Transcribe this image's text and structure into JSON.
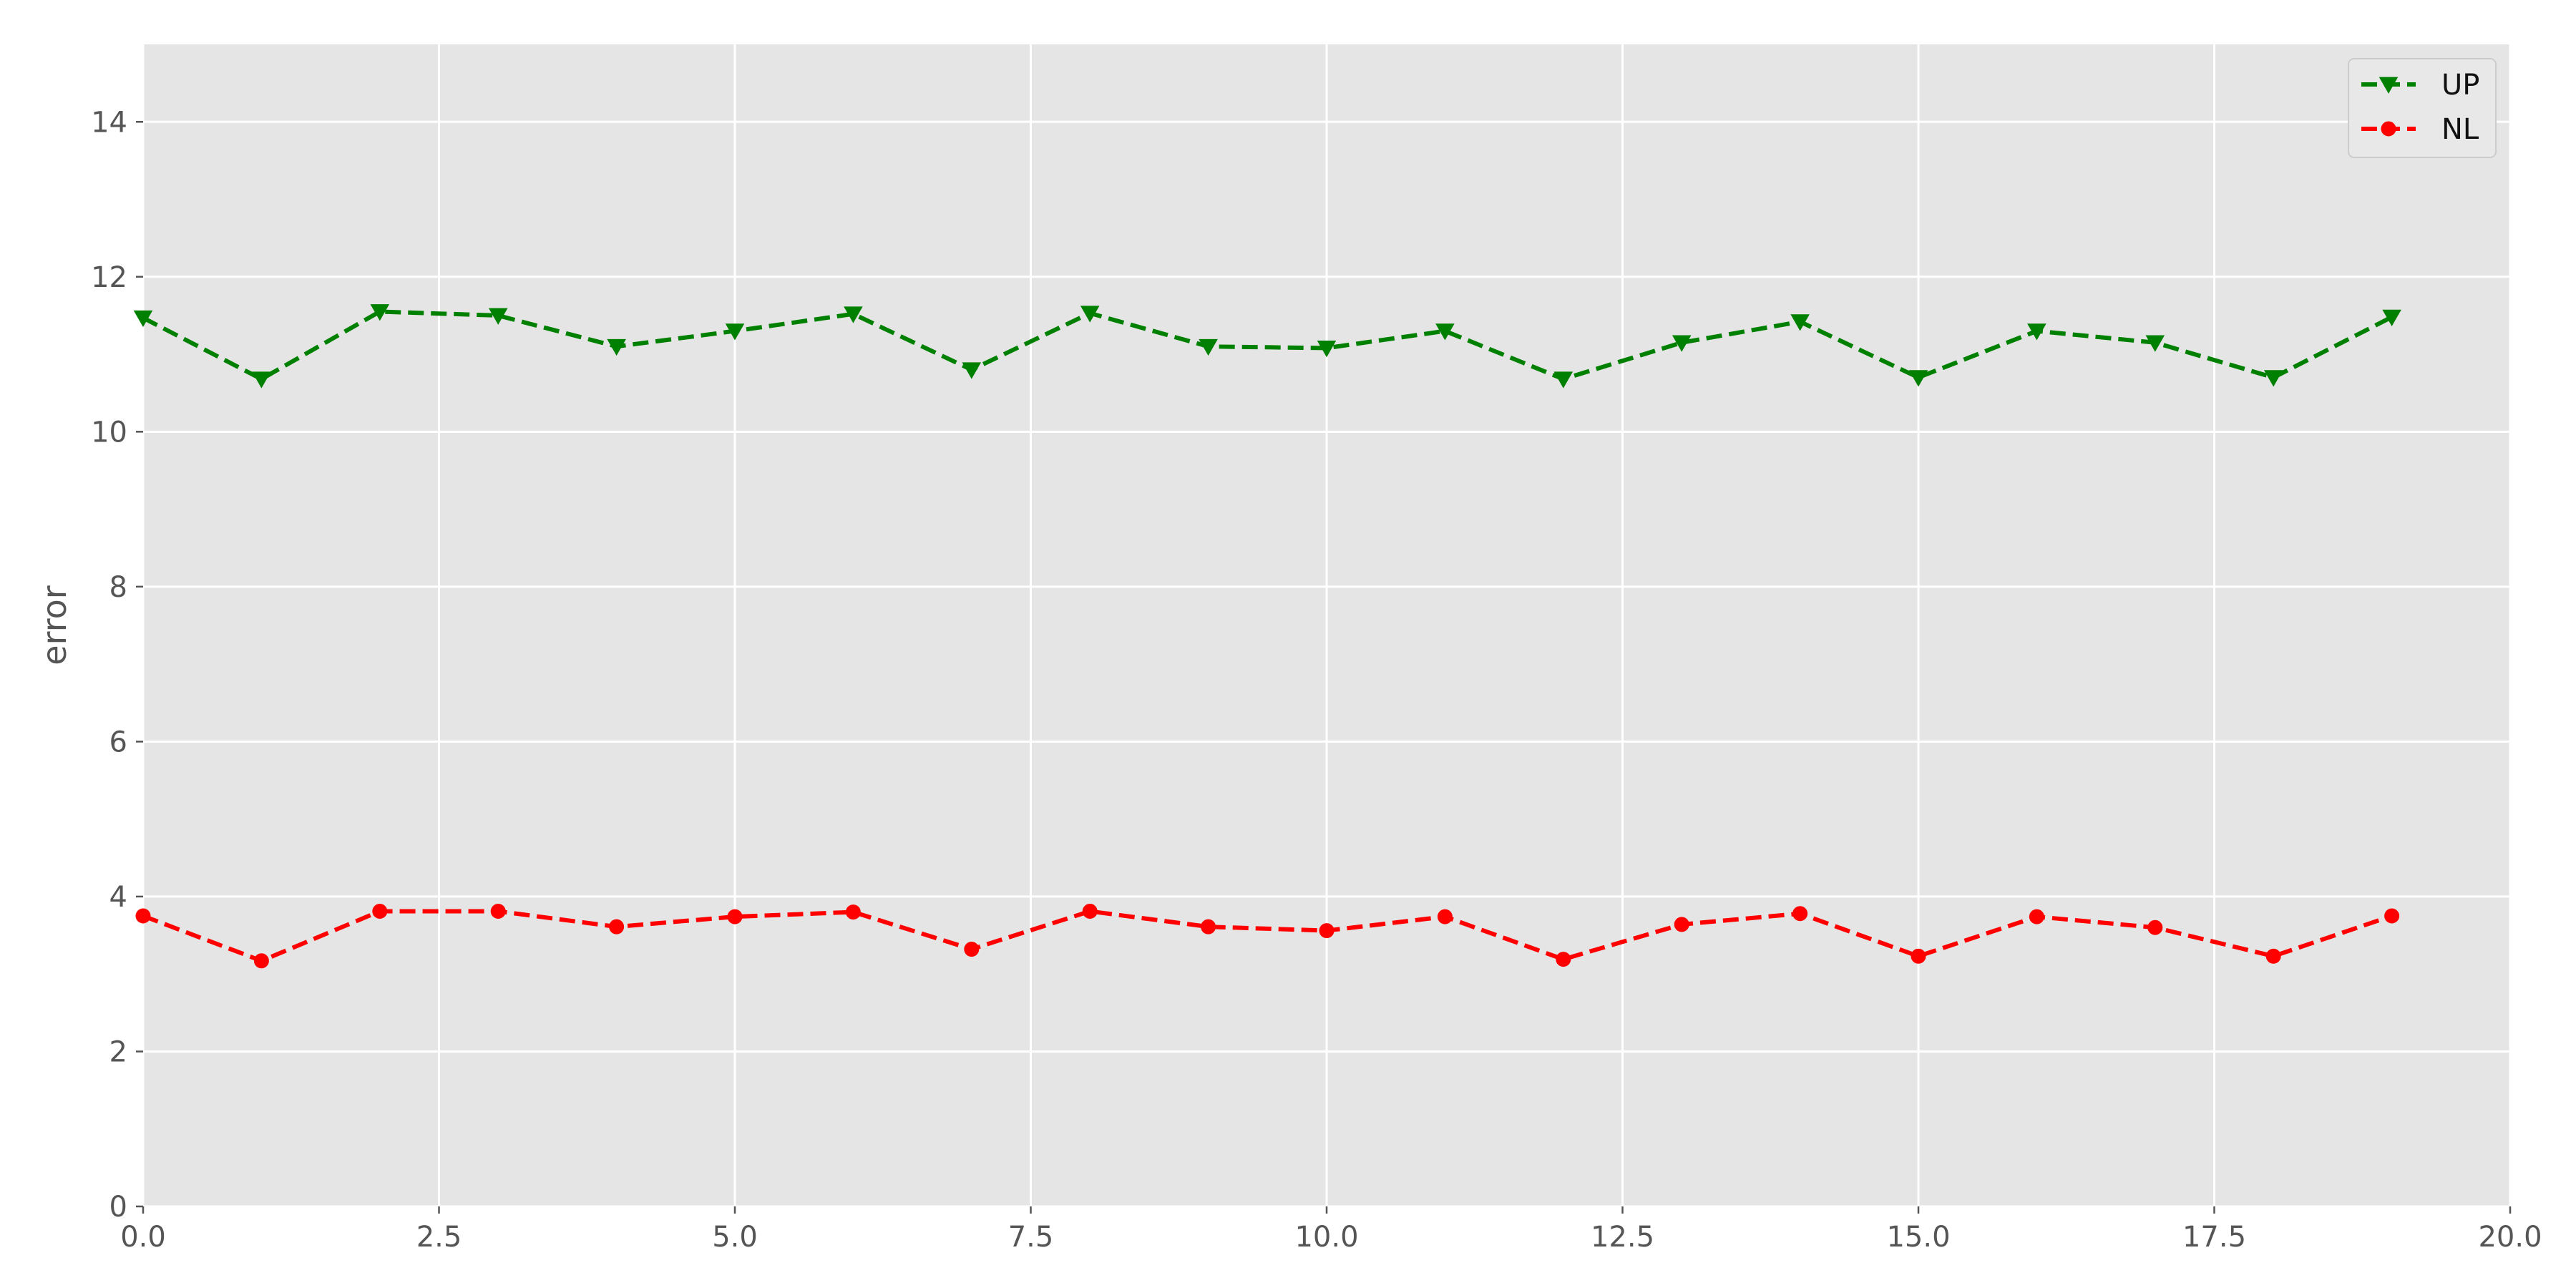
{
  "chart_data": {
    "type": "line",
    "title": "",
    "xlabel": "",
    "ylabel": "error",
    "xlim": [
      0,
      20
    ],
    "ylim": [
      0,
      15
    ],
    "xticks": [
      "0.0",
      "2.5",
      "5.0",
      "7.5",
      "10.0",
      "12.5",
      "15.0",
      "17.5",
      "20.0"
    ],
    "yticks": [
      "0",
      "2",
      "4",
      "6",
      "8",
      "10",
      "12",
      "14"
    ],
    "grid": true,
    "legend_position": "top-right",
    "x": [
      0,
      1,
      2,
      3,
      4,
      5,
      6,
      7,
      8,
      9,
      10,
      11,
      12,
      13,
      14,
      15,
      16,
      17,
      18,
      19
    ],
    "series": [
      {
        "name": "UP",
        "color": "#008000",
        "marker": "triangle-down",
        "linestyle": "dashed",
        "values": [
          11.47,
          10.68,
          11.55,
          11.5,
          11.1,
          11.3,
          11.52,
          10.8,
          11.53,
          11.1,
          11.08,
          11.3,
          10.68,
          11.15,
          11.42,
          10.7,
          11.3,
          11.15,
          10.7,
          11.48
        ]
      },
      {
        "name": "NL",
        "color": "#ff0000",
        "marker": "circle",
        "linestyle": "dashed",
        "values": [
          3.75,
          3.17,
          3.81,
          3.81,
          3.61,
          3.74,
          3.8,
          3.32,
          3.81,
          3.61,
          3.56,
          3.74,
          3.19,
          3.64,
          3.78,
          3.23,
          3.74,
          3.6,
          3.23,
          3.75
        ]
      }
    ]
  }
}
